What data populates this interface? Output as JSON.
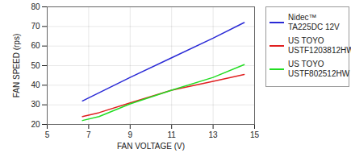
{
  "chart_data": {
    "type": "line",
    "xlabel": "FAN VOLTAGE (V)",
    "ylabel": "FAN SPEED (rps)",
    "xlim": [
      5,
      15
    ],
    "xticks": [
      5,
      7,
      9,
      11,
      13,
      15
    ],
    "ylim": [
      20,
      80
    ],
    "yticks": [
      20,
      30,
      40,
      50,
      60,
      70,
      80
    ],
    "grid": true,
    "legend": "right",
    "series": [
      {
        "name": "Nidec™ TA225DC 12V",
        "color": "#2a2ad6",
        "x": [
          6.7,
          9,
          11,
          13,
          14.5
        ],
        "values": [
          32,
          44,
          54,
          64,
          72
        ]
      },
      {
        "name": "US TOYO USTF1203812HW",
        "color": "#e02020",
        "x": [
          6.7,
          7.5,
          9,
          11,
          13,
          14.5
        ],
        "values": [
          24,
          26,
          31,
          37.5,
          42,
          45.5
        ]
      },
      {
        "name": "US TOYO USTF802512HW",
        "color": "#22dd22",
        "x": [
          6.7,
          7.5,
          9,
          11,
          13,
          14.5
        ],
        "values": [
          22,
          24,
          30.5,
          37.5,
          44,
          50.5
        ]
      }
    ]
  }
}
